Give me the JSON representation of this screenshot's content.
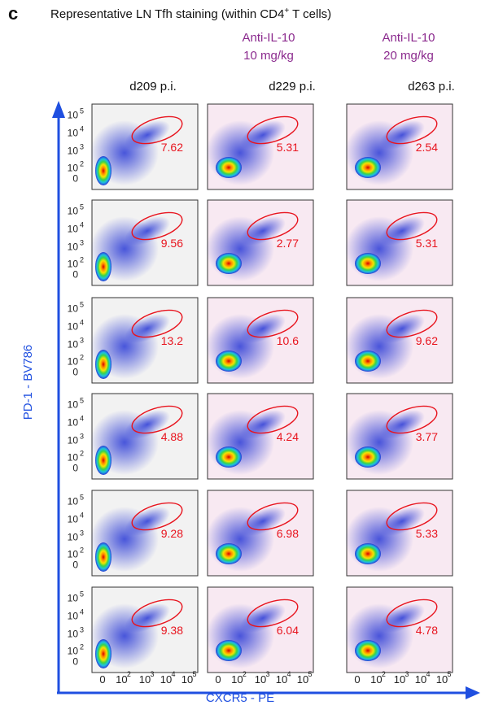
{
  "panel_letter": "c",
  "title_prefix": "Representative LN Tfh staining (within CD4",
  "title_sup": "+",
  "title_suffix": " T cells)",
  "treatments": [
    {
      "line1": "",
      "line2": ""
    },
    {
      "line1": "Anti-IL-10",
      "line2": "10 mg/kg"
    },
    {
      "line1": "Anti-IL-10",
      "line2": "20 mg/kg"
    }
  ],
  "columns": [
    "d209 p.i.",
    "d229 p.i.",
    "d263 p.i."
  ],
  "y_axis_title": "PD-1 - BV786",
  "x_axis_title": "CXCR5 - PE",
  "colors": {
    "axis": "#1f4fe0",
    "gate": "#e8141e",
    "treatment_text": "#8b2a8e",
    "panel_bg_control": "#f2f2f2",
    "panel_bg_treated": "#f8e9f2"
  },
  "chart_data": {
    "type": "table",
    "description_of_values": "Percent of CD4+ T cells in PD-1 hi CXCR5+ gate",
    "columns": [
      "d209 p.i.",
      "d229 p.i.",
      "d263 p.i."
    ],
    "rows": [
      [
        "7.62",
        "5.31",
        "2.54"
      ],
      [
        "9.56",
        "2.77",
        "5.31"
      ],
      [
        "13.2",
        "10.6",
        "9.62"
      ],
      [
        "4.88",
        "4.24",
        "3.77"
      ],
      [
        "9.28",
        "6.98",
        "5.33"
      ],
      [
        "9.38",
        "6.04",
        "4.78"
      ]
    ],
    "y_ticks": [
      "0",
      "10",
      "10",
      "10",
      "10"
    ],
    "y_tick_exp": [
      "",
      "2",
      "3",
      "4",
      "5"
    ],
    "x_ticks": [
      "0",
      "10",
      "10",
      "10",
      "10"
    ],
    "x_tick_exp": [
      "",
      "2",
      "3",
      "4",
      "5"
    ]
  }
}
